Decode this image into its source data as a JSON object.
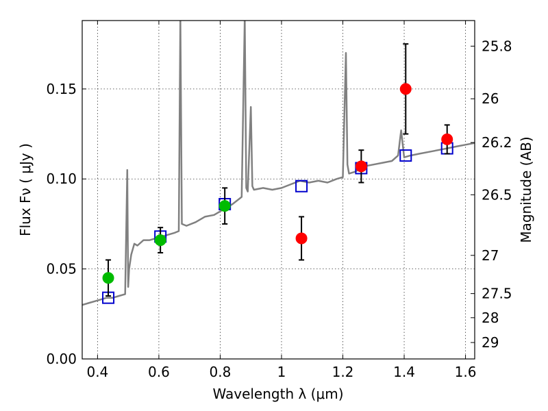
{
  "chart_data": {
    "type": "scatter",
    "title": "",
    "xlabel": "Wavelength  λ (μm)",
    "ylabel": "Flux  Fν  ( μJy )",
    "ylabel_right": "Magnitude (AB)",
    "xlim": [
      0.35,
      1.63
    ],
    "ylim": [
      0.0,
      0.188
    ],
    "grid": true,
    "x_ticks": [
      {
        "value": 0.4,
        "label": "0.4"
      },
      {
        "value": 0.6,
        "label": "0.6"
      },
      {
        "value": 0.8,
        "label": "0.8"
      },
      {
        "value": 1.0,
        "label": "1"
      },
      {
        "value": 1.2,
        "label": "1.2"
      },
      {
        "value": 1.4,
        "label": "1.4"
      },
      {
        "value": 1.6,
        "label": "1.6"
      }
    ],
    "y_ticks": [
      {
        "value": 0.0,
        "label": "0.00"
      },
      {
        "value": 0.05,
        "label": "0.05"
      },
      {
        "value": 0.1,
        "label": "0.10"
      },
      {
        "value": 0.15,
        "label": "0.15"
      }
    ],
    "mag_ticks": [
      "25.8",
      "26",
      "26.2",
      "26.5",
      "27",
      "27.5",
      "28",
      "29"
    ],
    "series": [
      {
        "kind": "line",
        "color": "#808080",
        "x": [
          0.35,
          0.37,
          0.39,
          0.41,
          0.43,
          0.45,
          0.47,
          0.49,
          0.497,
          0.5,
          0.503,
          0.51,
          0.52,
          0.53,
          0.55,
          0.57,
          0.59,
          0.61,
          0.63,
          0.65,
          0.665,
          0.67,
          0.675,
          0.69,
          0.72,
          0.75,
          0.78,
          0.81,
          0.84,
          0.87,
          0.88,
          0.885,
          0.89,
          0.9,
          0.905,
          0.91,
          0.94,
          0.97,
          1.0,
          1.03,
          1.06,
          1.09,
          1.12,
          1.15,
          1.18,
          1.2,
          1.21,
          1.215,
          1.22,
          1.24,
          1.27,
          1.3,
          1.33,
          1.36,
          1.38,
          1.39,
          1.4,
          1.42,
          1.45,
          1.48,
          1.51,
          1.54,
          1.57,
          1.6,
          1.63
        ],
        "values": [
          0.03,
          0.031,
          0.032,
          0.033,
          0.034,
          0.034,
          0.035,
          0.036,
          0.105,
          0.04,
          0.05,
          0.058,
          0.064,
          0.063,
          0.066,
          0.066,
          0.067,
          0.068,
          0.069,
          0.07,
          0.071,
          0.19,
          0.075,
          0.074,
          0.076,
          0.079,
          0.08,
          0.083,
          0.086,
          0.09,
          0.19,
          0.095,
          0.093,
          0.14,
          0.096,
          0.094,
          0.095,
          0.094,
          0.095,
          0.097,
          0.099,
          0.098,
          0.099,
          0.098,
          0.1,
          0.101,
          0.17,
          0.108,
          0.103,
          0.104,
          0.107,
          0.108,
          0.109,
          0.11,
          0.113,
          0.127,
          0.112,
          0.113,
          0.114,
          0.115,
          0.116,
          0.117,
          0.118,
          0.119,
          0.12
        ]
      },
      {
        "kind": "squares",
        "color": "#0000cc",
        "x": [
          0.435,
          0.605,
          0.815,
          1.065,
          1.26,
          1.405,
          1.54
        ],
        "values": [
          0.034,
          0.068,
          0.086,
          0.096,
          0.106,
          0.113,
          0.117
        ]
      },
      {
        "kind": "points",
        "color": "#00bb00",
        "x": [
          0.435,
          0.605,
          0.815
        ],
        "values": [
          0.045,
          0.066,
          0.085
        ],
        "err": [
          0.01,
          0.007,
          0.01
        ]
      },
      {
        "kind": "points",
        "color": "#ff0000",
        "x": [
          1.065,
          1.26,
          1.405,
          1.54
        ],
        "values": [
          0.067,
          0.107,
          0.15,
          0.122
        ],
        "err": [
          0.012,
          0.009,
          0.025,
          0.008
        ]
      }
    ]
  }
}
